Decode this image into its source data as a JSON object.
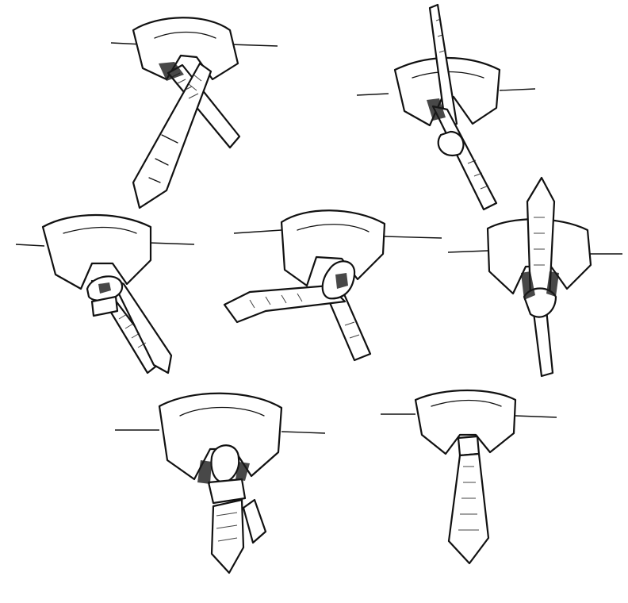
{
  "image": {
    "subject": "tie-knot-illustration",
    "style": "ink-sketch",
    "background_color": "#ffffff",
    "ink_color": "#111111"
  },
  "steps": [
    {
      "name": "step-1"
    },
    {
      "name": "step-2"
    },
    {
      "name": "step-3"
    },
    {
      "name": "step-4"
    },
    {
      "name": "step-5"
    },
    {
      "name": "step-6"
    },
    {
      "name": "step-7"
    }
  ]
}
